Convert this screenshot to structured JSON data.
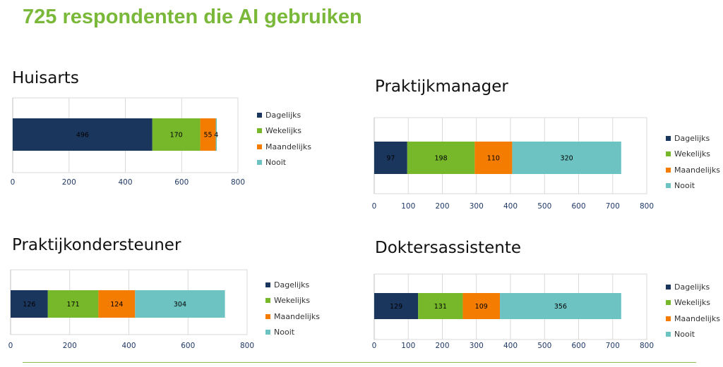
{
  "page": {
    "title": "725 respondenten die AI gebruiken"
  },
  "colors": {
    "Dagelijks": "#1b365d",
    "Wekelijks": "#77b82a",
    "Maandelijks": "#f47c00",
    "Nooit": "#6cc3c2",
    "grid": "#d9d9d9",
    "axis_text": "#1f3864"
  },
  "chart_data": [
    {
      "type": "bar",
      "orientation": "horizontal-stacked",
      "title": "Huisarts",
      "series": [
        {
          "name": "Dagelijks",
          "values": [
            496
          ]
        },
        {
          "name": "Wekelijks",
          "values": [
            170
          ]
        },
        {
          "name": "Maandelijks",
          "values": [
            55
          ]
        },
        {
          "name": "Nooit",
          "values": [
            4
          ]
        }
      ],
      "xlim": [
        0,
        800
      ],
      "xticks": [
        0,
        200,
        400,
        600,
        800
      ],
      "legend": [
        "Dagelijks",
        "Wekelijks",
        "Maandelijks",
        "Nooit"
      ],
      "legend_position": "right"
    },
    {
      "type": "bar",
      "orientation": "horizontal-stacked",
      "title": "Praktijkmanager",
      "series": [
        {
          "name": "Dagelijks",
          "values": [
            97
          ]
        },
        {
          "name": "Wekelijks",
          "values": [
            198
          ]
        },
        {
          "name": "Maandelijks",
          "values": [
            110
          ]
        },
        {
          "name": "Nooit",
          "values": [
            320
          ]
        }
      ],
      "xlim": [
        0,
        800
      ],
      "xticks": [
        0,
        100,
        200,
        300,
        400,
        500,
        600,
        700,
        800
      ],
      "legend": [
        "Dagelijks",
        "Wekelijks",
        "Maandelijks",
        "Nooit"
      ],
      "legend_position": "right"
    },
    {
      "type": "bar",
      "orientation": "horizontal-stacked",
      "title": "Praktijkondersteuner",
      "series": [
        {
          "name": "Dagelijks",
          "values": [
            126
          ]
        },
        {
          "name": "Wekelijks",
          "values": [
            171
          ]
        },
        {
          "name": "Maandelijks",
          "values": [
            124
          ]
        },
        {
          "name": "Nooit",
          "values": [
            304
          ]
        }
      ],
      "xlim": [
        0,
        800
      ],
      "xticks": [
        0,
        200,
        400,
        600,
        800
      ],
      "legend": [
        "Dagelijks",
        "Wekelijks",
        "Maandelijks",
        "Nooit"
      ],
      "legend_position": "right"
    },
    {
      "type": "bar",
      "orientation": "horizontal-stacked",
      "title": "Doktersassistente",
      "series": [
        {
          "name": "Dagelijks",
          "values": [
            129
          ]
        },
        {
          "name": "Wekelijks",
          "values": [
            131
          ]
        },
        {
          "name": "Maandelijks",
          "values": [
            109
          ]
        },
        {
          "name": "Nooit",
          "values": [
            356
          ]
        }
      ],
      "xlim": [
        0,
        800
      ],
      "xticks": [
        0,
        100,
        200,
        300,
        400,
        500,
        600,
        700,
        800
      ],
      "legend": [
        "Dagelijks",
        "Wekelijks",
        "Maandelijks",
        "Nooit"
      ],
      "legend_position": "right"
    }
  ]
}
